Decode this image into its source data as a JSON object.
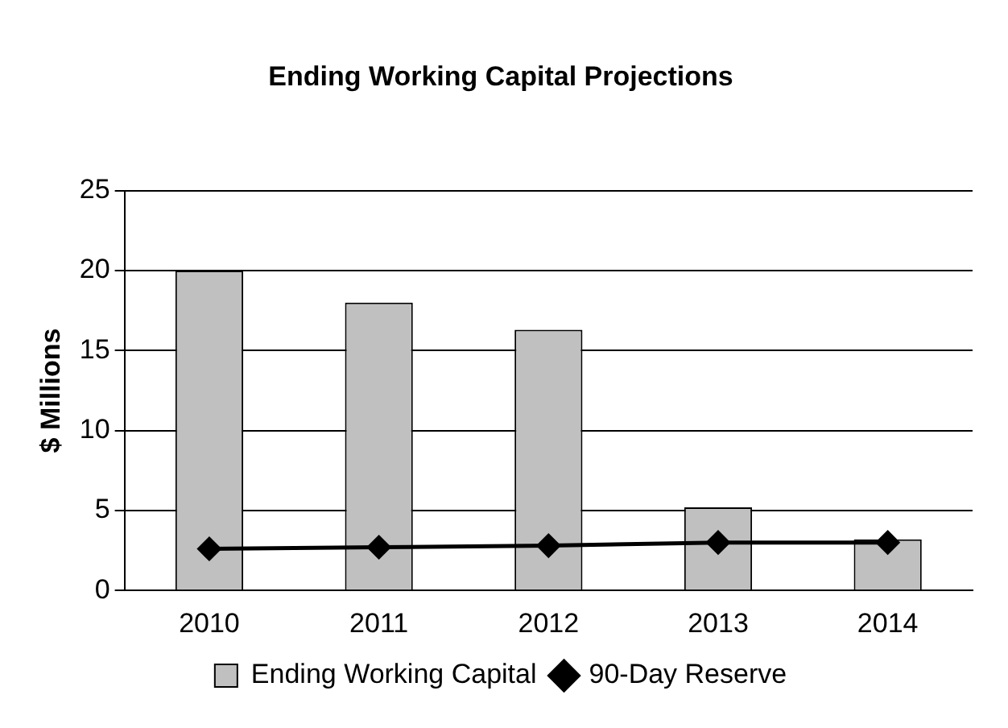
{
  "chart_data": {
    "type": "bar",
    "title": "Ending Working Capital Projections",
    "ylabel": "$ Millions",
    "categories": [
      "2010",
      "2011",
      "2012",
      "2013",
      "2014"
    ],
    "series": [
      {
        "name": "Ending Working Capital",
        "color": "#c0c0c0",
        "values": [
          20,
          18,
          16.3,
          5.2,
          3.2
        ]
      },
      {
        "name": "90-Day Reserve",
        "type": "line",
        "color": "#000000",
        "values": [
          2.6,
          2.7,
          2.8,
          3.0,
          3.0
        ],
        "marker": "diamond"
      }
    ],
    "ylim": [
      0,
      25
    ],
    "yticks": [
      0,
      5,
      10,
      15,
      20,
      25
    ],
    "grid": "y",
    "legend": "bottom"
  }
}
